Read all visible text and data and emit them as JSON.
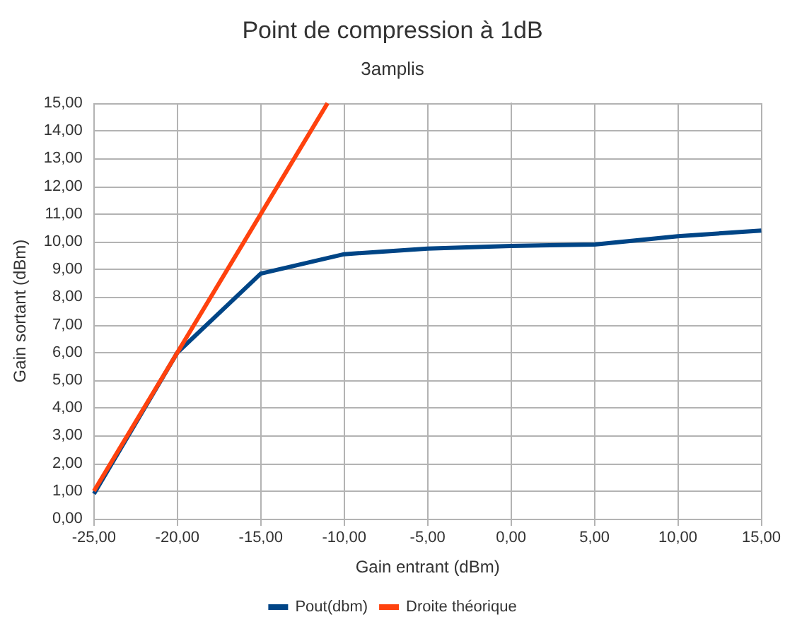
{
  "chart_data": {
    "type": "line",
    "title": "Point de compression à 1dB",
    "subtitle": "3amplis",
    "xlabel": "Gain entrant (dBm)",
    "ylabel": "Gain sortant (dBm)",
    "series": [
      {
        "name": "Pout(dbm)",
        "color": "#004586",
        "x": [
          -25,
          -20,
          -15,
          -10,
          -5,
          0,
          5,
          10,
          15
        ],
        "values": [
          0.9,
          6.0,
          8.85,
          9.55,
          9.75,
          9.85,
          9.9,
          10.2,
          10.4
        ]
      },
      {
        "name": "Droite théorique",
        "color": "#ff420e",
        "x": [
          -25,
          -20,
          -15,
          -11
        ],
        "values": [
          1,
          6,
          11,
          15
        ]
      }
    ],
    "xlim": [
      -25,
      15
    ],
    "ylim": [
      0,
      15
    ],
    "xticks": [
      {
        "value": -25,
        "label": "-25,00"
      },
      {
        "value": -20,
        "label": "-20,00"
      },
      {
        "value": -15,
        "label": "-15,00"
      },
      {
        "value": -10,
        "label": "-10,00"
      },
      {
        "value": -5,
        "label": "-5,00"
      },
      {
        "value": 0,
        "label": "0,00"
      },
      {
        "value": 5,
        "label": "5,00"
      },
      {
        "value": 10,
        "label": "10,00"
      },
      {
        "value": 15,
        "label": "15,00"
      }
    ],
    "yticks": [
      {
        "value": 0,
        "label": "0,00"
      },
      {
        "value": 1,
        "label": "1,00"
      },
      {
        "value": 2,
        "label": "2,00"
      },
      {
        "value": 3,
        "label": "3,00"
      },
      {
        "value": 4,
        "label": "4,00"
      },
      {
        "value": 5,
        "label": "5,00"
      },
      {
        "value": 6,
        "label": "6,00"
      },
      {
        "value": 7,
        "label": "7,00"
      },
      {
        "value": 8,
        "label": "8,00"
      },
      {
        "value": 9,
        "label": "9,00"
      },
      {
        "value": 10,
        "label": "10,00"
      },
      {
        "value": 11,
        "label": "11,00"
      },
      {
        "value": 12,
        "label": "12,00"
      },
      {
        "value": 13,
        "label": "13,00"
      },
      {
        "value": 14,
        "label": "14,00"
      },
      {
        "value": 15,
        "label": "15,00"
      }
    ],
    "grid": true,
    "legend": "bottom",
    "marker": "none",
    "line_style": "solid"
  }
}
